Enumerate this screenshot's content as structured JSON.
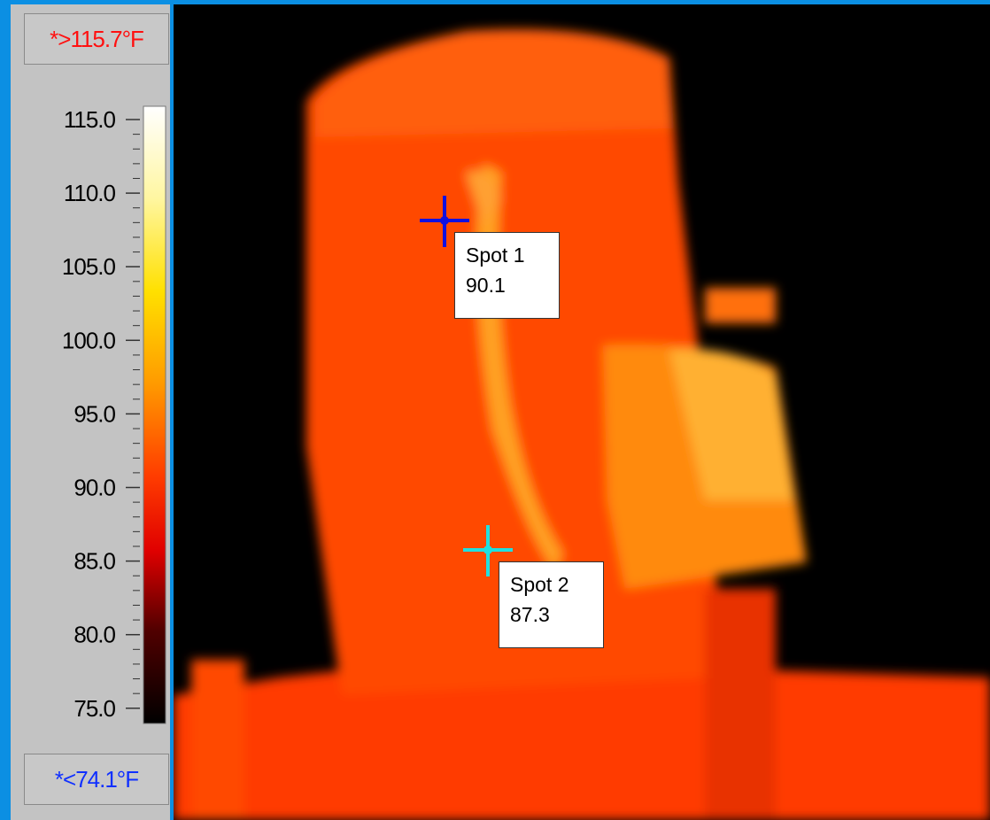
{
  "scale": {
    "max_label": "*>115.7°F",
    "min_label": "*<74.1°F",
    "ticks": [
      "115.0",
      "110.0",
      "105.0",
      "100.0",
      "95.0",
      "90.0",
      "85.0",
      "80.0",
      "75.0"
    ]
  },
  "spots": [
    {
      "name": "Spot 1",
      "value": "90.1"
    },
    {
      "name": "Spot 2",
      "value": "87.3"
    }
  ]
}
